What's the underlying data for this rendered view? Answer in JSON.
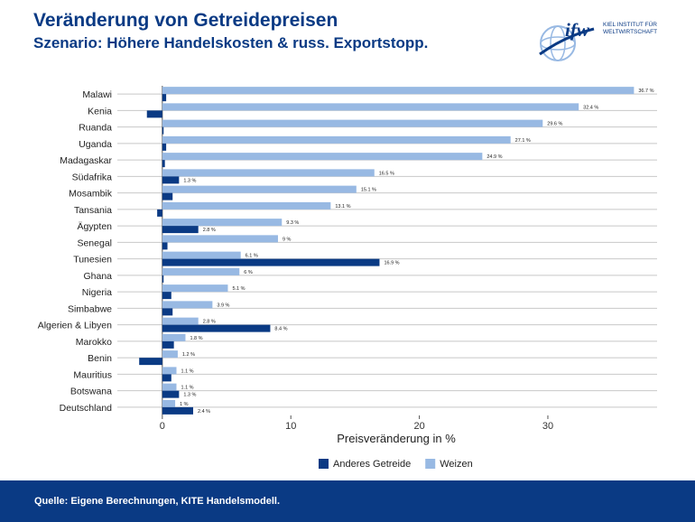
{
  "header": {
    "title": "Veränderung von Getreidepreisen",
    "subtitle": "Szenario: Höhere Handelskosten & russ. Exportstopp."
  },
  "logo": {
    "mark": "ifw",
    "line1": "KIEL INSTITUT FÜR",
    "line2": "WELTWIRTSCHAFT"
  },
  "footer": {
    "source": "Quelle: Eigene Berechnungen, KITE Handelsmodell."
  },
  "colors": {
    "weizen": "#98b9e3",
    "anderes": "#0a3a84",
    "brand": "#0a3a84"
  },
  "chart_data": {
    "type": "bar",
    "orientation": "horizontal",
    "categories": [
      "Malawi",
      "Kenia",
      "Ruanda",
      "Uganda",
      "Madagaskar",
      "Südafrika",
      "Mosambik",
      "Tansania",
      "Ägypten",
      "Senegal",
      "Tunesien",
      "Ghana",
      "Nigeria",
      "Simbabwe",
      "Algerien & Libyen",
      "Marokko",
      "Benin",
      "Mauritius",
      "Botswana",
      "Deutschland"
    ],
    "series": [
      {
        "name": "Weizen",
        "values": [
          36.7,
          32.4,
          29.6,
          27.1,
          24.9,
          16.5,
          15.1,
          13.1,
          9.3,
          9,
          6.1,
          6,
          5.1,
          3.9,
          2.8,
          1.8,
          1.2,
          1.1,
          1.1,
          1
        ],
        "labels": [
          "36.7 %",
          "32.4 %",
          "29.6 %",
          "27.1 %",
          "24.9 %",
          "16.5 %",
          "15.1 %",
          "13.1 %",
          "9.3 %",
          "9 %",
          "6.1 %",
          "6 %",
          "5.1 %",
          "3.9 %",
          "2.8 %",
          "1.8 %",
          "1.2 %",
          "1.1 %",
          "1.1 %",
          "1 %"
        ]
      },
      {
        "name": "Anderes Getreide",
        "values": [
          0.3,
          -1.2,
          0.1,
          0.3,
          0.2,
          1.3,
          0.8,
          -0.4,
          2.8,
          0.4,
          16.9,
          0.1,
          0.7,
          0.8,
          8.4,
          0.9,
          -1.8,
          0.7,
          1.3,
          2.4
        ],
        "labels": [
          "",
          "",
          "",
          "",
          "",
          "1.3 %",
          "",
          "",
          "2.8 %",
          "",
          "16.9 %",
          "",
          "",
          "",
          "8.4 %",
          "",
          "",
          "",
          "1.3 %",
          "2.4 %"
        ]
      }
    ],
    "legend_order": [
      "Anderes Getreide",
      "Weizen"
    ],
    "legend_position": "bottom",
    "xlabel": "Preisveränderung in %",
    "xlim": [
      -3.5,
      38.5
    ],
    "xticks": [
      0,
      10,
      20,
      30
    ],
    "grid": true
  }
}
